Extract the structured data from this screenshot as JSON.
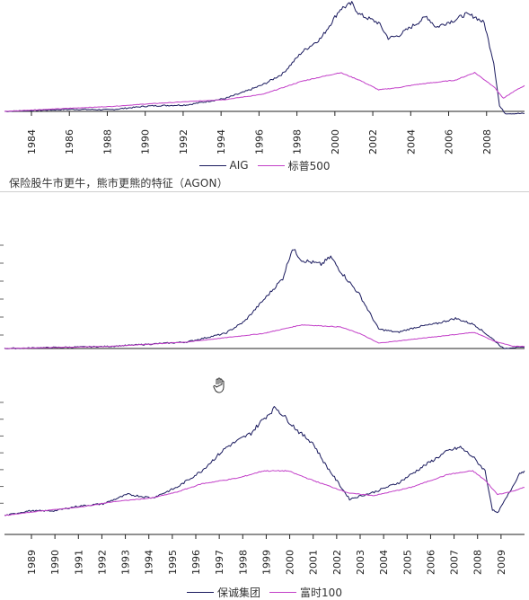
{
  "panels": [
    {
      "chart_data": {
        "type": "line",
        "x_range": [
          1982.5,
          2009.6
        ],
        "y_range": [
          0,
          1
        ],
        "xticks": [
          "1984",
          "1986",
          "1988",
          "1990",
          "1992",
          "1994",
          "1996",
          "1998",
          "2000",
          "2002",
          "2004",
          "2006",
          "2008"
        ],
        "series": [
          {
            "name": "AIG",
            "color": "#1a1a5e",
            "points": [
              [
                1982.5,
                0.0
              ],
              [
                1986,
                0.02
              ],
              [
                1988,
                0.015
              ],
              [
                1990,
                0.05
              ],
              [
                1992,
                0.06
              ],
              [
                1994,
                0.12
              ],
              [
                1995,
                0.18
              ],
              [
                1996,
                0.25
              ],
              [
                1997,
                0.35
              ],
              [
                1998,
                0.55
              ],
              [
                1999,
                0.68
              ],
              [
                2000,
                0.95
              ],
              [
                2000.6,
                1.0
              ],
              [
                2001,
                0.9
              ],
              [
                2002,
                0.82
              ],
              [
                2002.5,
                0.68
              ],
              [
                2003,
                0.7
              ],
              [
                2004,
                0.82
              ],
              [
                2004.5,
                0.88
              ],
              [
                2005,
                0.78
              ],
              [
                2005.5,
                0.82
              ],
              [
                2006,
                0.85
              ],
              [
                2006.5,
                0.9
              ],
              [
                2007,
                0.88
              ],
              [
                2007.5,
                0.82
              ],
              [
                2008,
                0.45
              ],
              [
                2008.3,
                0.05
              ],
              [
                2008.6,
                -0.02
              ],
              [
                2009,
                -0.02
              ],
              [
                2009.6,
                -0.02
              ]
            ]
          },
          {
            "name": "标普500",
            "color": "#c23fc8",
            "points": [
              [
                1982.5,
                0.0
              ],
              [
                1986,
                0.03
              ],
              [
                1988,
                0.045
              ],
              [
                1990,
                0.07
              ],
              [
                1992,
                0.09
              ],
              [
                1994,
                0.11
              ],
              [
                1996,
                0.16
              ],
              [
                1998,
                0.28
              ],
              [
                2000,
                0.36
              ],
              [
                2001,
                0.29
              ],
              [
                2002,
                0.2
              ],
              [
                2003,
                0.22
              ],
              [
                2004,
                0.25
              ],
              [
                2006,
                0.29
              ],
              [
                2007,
                0.36
              ],
              [
                2008,
                0.23
              ],
              [
                2008.5,
                0.12
              ],
              [
                2009,
                0.18
              ],
              [
                2009.6,
                0.24
              ]
            ]
          }
        ],
        "legend": [
          "AIG",
          "标普500"
        ]
      }
    },
    {
      "chart_data": {
        "type": "line",
        "x_range": [
          1982.5,
          2009.6
        ],
        "y_range": [
          0,
          1
        ],
        "xticks": [],
        "series": [
          {
            "name": "",
            "color": "#1a1a5e",
            "points": [
              [
                1982.5,
                0.0
              ],
              [
                1988,
                0.02
              ],
              [
                1990,
                0.04
              ],
              [
                1992,
                0.06
              ],
              [
                1994,
                0.14
              ],
              [
                1995,
                0.25
              ],
              [
                1996,
                0.45
              ],
              [
                1997,
                0.65
              ],
              [
                1997.5,
                0.93
              ],
              [
                1998,
                0.82
              ],
              [
                1999,
                0.78
              ],
              [
                1999.5,
                0.85
              ],
              [
                2000,
                0.72
              ],
              [
                2001,
                0.5
              ],
              [
                2002,
                0.18
              ],
              [
                2003,
                0.15
              ],
              [
                2004,
                0.2
              ],
              [
                2005,
                0.23
              ],
              [
                2006,
                0.28
              ],
              [
                2007,
                0.22
              ],
              [
                2008,
                0.08
              ],
              [
                2008.5,
                0.0
              ],
              [
                2009,
                0.01
              ],
              [
                2009.6,
                0.01
              ]
            ]
          },
          {
            "name": "",
            "color": "#c23fc8",
            "points": [
              [
                1982.5,
                0.0
              ],
              [
                1988,
                0.02
              ],
              [
                1990,
                0.04
              ],
              [
                1992,
                0.06
              ],
              [
                1994,
                0.1
              ],
              [
                1996,
                0.14
              ],
              [
                1998,
                0.22
              ],
              [
                2000,
                0.2
              ],
              [
                2001,
                0.14
              ],
              [
                2002,
                0.05
              ],
              [
                2003,
                0.07
              ],
              [
                2005,
                0.11
              ],
              [
                2007,
                0.15
              ],
              [
                2008,
                0.07
              ],
              [
                2009,
                0.02
              ],
              [
                2009.6,
                0.02
              ]
            ]
          }
        ],
        "legend": []
      }
    },
    {
      "chart_data": {
        "type": "line",
        "x_range": [
          1988.5,
          2009.6
        ],
        "y_range": [
          0,
          1
        ],
        "xticks": [
          "1989",
          "1990",
          "1991",
          "1992",
          "1993",
          "1994",
          "1995",
          "1996",
          "1997",
          "1998",
          "1999",
          "2000",
          "2001",
          "2002",
          "2003",
          "2004",
          "2005",
          "2006",
          "2007",
          "2008",
          "2009"
        ],
        "series": [
          {
            "name": "保诚集团",
            "color": "#1a1a5e",
            "points": [
              [
                1988.5,
                0.0
              ],
              [
                1989.5,
                0.04
              ],
              [
                1990.5,
                0.04
              ],
              [
                1991.5,
                0.08
              ],
              [
                1992.5,
                0.1
              ],
              [
                1993.5,
                0.18
              ],
              [
                1994.5,
                0.15
              ],
              [
                1995.5,
                0.24
              ],
              [
                1996.5,
                0.38
              ],
              [
                1997.5,
                0.58
              ],
              [
                1998.5,
                0.7
              ],
              [
                1999,
                0.82
              ],
              [
                1999.5,
                0.92
              ],
              [
                2000.5,
                0.7
              ],
              [
                2001,
                0.62
              ],
              [
                2001.5,
                0.44
              ],
              [
                2002.5,
                0.14
              ],
              [
                2003.5,
                0.2
              ],
              [
                2004.5,
                0.28
              ],
              [
                2005.5,
                0.42
              ],
              [
                2006.5,
                0.55
              ],
              [
                2007,
                0.58
              ],
              [
                2007.5,
                0.5
              ],
              [
                2008,
                0.38
              ],
              [
                2008.3,
                0.05
              ],
              [
                2008.5,
                0.02
              ],
              [
                2009,
                0.2
              ],
              [
                2009.4,
                0.36
              ],
              [
                2009.6,
                0.38
              ]
            ]
          },
          {
            "name": "富时100",
            "color": "#c23fc8",
            "points": [
              [
                1988.5,
                0.0
              ],
              [
                1990,
                0.04
              ],
              [
                1991.5,
                0.07
              ],
              [
                1993,
                0.12
              ],
              [
                1994.5,
                0.15
              ],
              [
                1995.5,
                0.2
              ],
              [
                1996.5,
                0.27
              ],
              [
                1998,
                0.32
              ],
              [
                1999,
                0.38
              ],
              [
                2000,
                0.38
              ],
              [
                2001,
                0.3
              ],
              [
                2002.5,
                0.19
              ],
              [
                2003.5,
                0.17
              ],
              [
                2005,
                0.24
              ],
              [
                2006.5,
                0.35
              ],
              [
                2007.5,
                0.38
              ],
              [
                2008,
                0.3
              ],
              [
                2008.5,
                0.18
              ],
              [
                2009,
                0.2
              ],
              [
                2009.6,
                0.24
              ]
            ]
          }
        ],
        "legend": [
          "保诚集团",
          "富时100"
        ]
      }
    }
  ],
  "caption": "保险股牛市更牛，熊市更熊的特征（AGON）",
  "legend_labels": {
    "panel1_a": "AIG",
    "panel1_b": "标普500",
    "panel3_a": "保诚集团",
    "panel3_b": "富时100"
  },
  "colors": {
    "dark": "#1a1a5e",
    "magenta": "#c23fc8"
  },
  "icons": {
    "cursor": "hand-cursor-icon"
  }
}
